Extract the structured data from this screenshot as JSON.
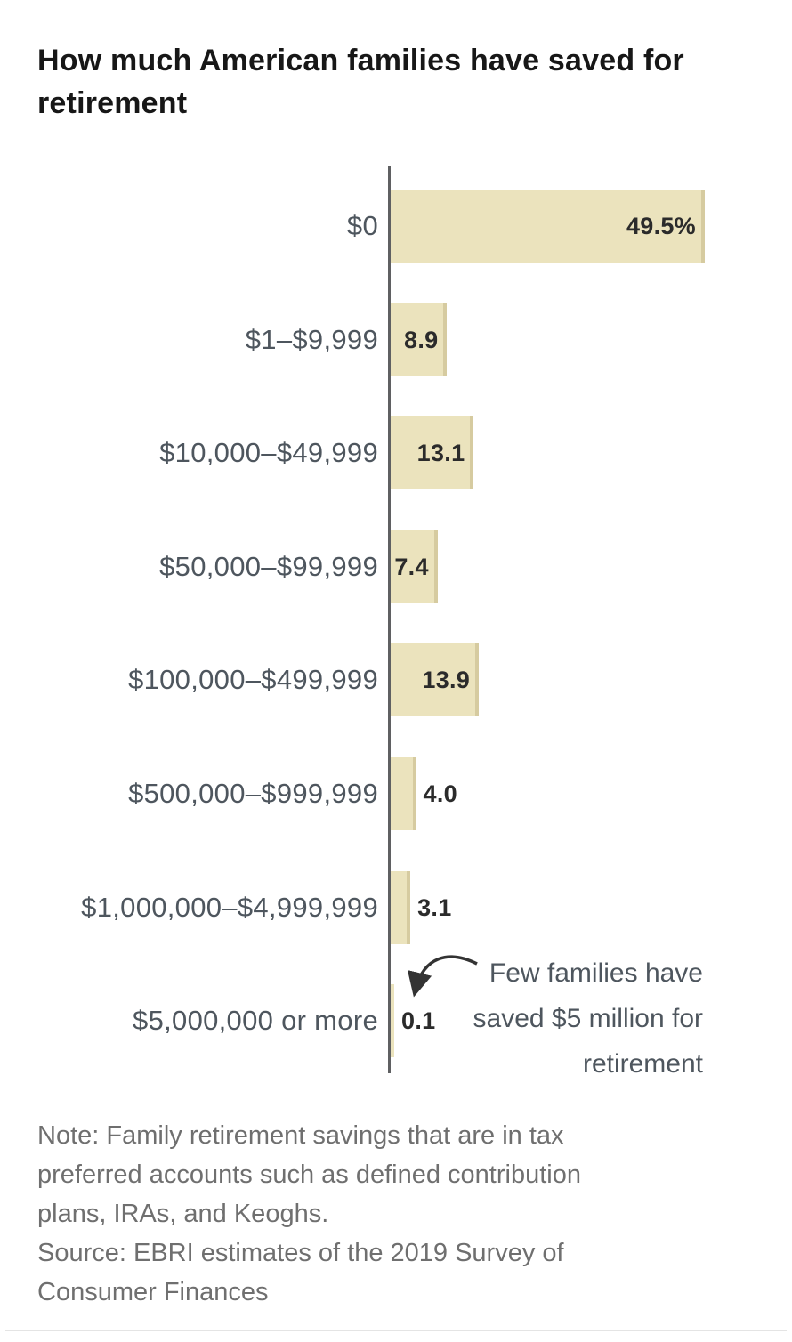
{
  "title_lines": [
    "How much American families have saved for",
    "retirement"
  ],
  "chart_data": {
    "type": "bar",
    "orientation": "horizontal",
    "title": "How much American families have saved for retirement",
    "unit": "percent of families",
    "xlim": [
      0,
      50
    ],
    "grid": false,
    "categories": [
      "$0",
      "$1–$9,999",
      "$10,000–$49,999",
      "$50,000–$99,999",
      "$100,000–$499,999",
      "$500,000–$999,999",
      "$1,000,000–$4,999,999",
      "$5,000,000 or more"
    ],
    "values": [
      49.5,
      8.9,
      13.1,
      7.4,
      13.9,
      4.0,
      3.1,
      0.1
    ],
    "value_labels": [
      "49.5%",
      "8.9",
      "13.1",
      "7.4",
      "13.9",
      "4.0",
      "3.1",
      "0.1"
    ],
    "label_positions": [
      "inside",
      "inside",
      "inside",
      "inside",
      "inside",
      "outside",
      "outside",
      "outside"
    ],
    "annotation": {
      "lines": [
        "Few families have",
        "saved $5 million for",
        "retirement"
      ],
      "target_category": "$5,000,000 or more"
    }
  },
  "note_lines": [
    "Note: Family retirement savings that are in tax",
    "preferred accounts such as defined contribution",
    "plans, IRAs, and Keoghs.",
    "Source: EBRI estimates of the 2019 Survey of",
    "Consumer Finances"
  ],
  "colors": {
    "bg": "#ffffff",
    "bar_fill": "#ebe3bd",
    "bar_edge": "#d6cba0",
    "axis": "#5f6062",
    "title_text": "#171717",
    "category_text": "#4e565e",
    "value_text": "#2b2b2b",
    "note_text": "#6f6f6f",
    "annotation_text": "#4e565e",
    "arrow": "#333333",
    "divider": "#e4e4e4"
  }
}
